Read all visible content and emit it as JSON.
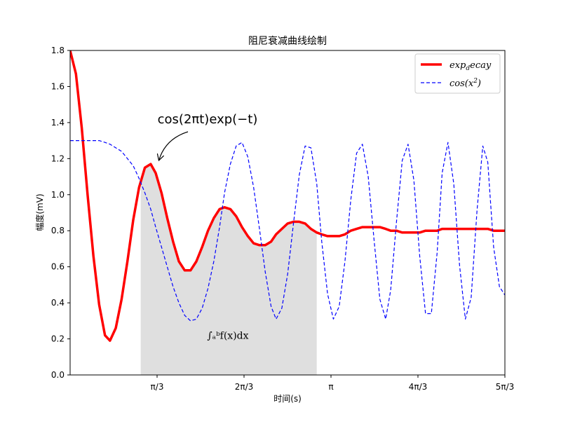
{
  "chart_data": {
    "type": "line",
    "title": "阻尼衰减曲线绘制",
    "xlabel": "时间(s)",
    "ylabel": "幅度(mV)",
    "xlim": [
      0,
      5.236
    ],
    "ylim": [
      0,
      1.8
    ],
    "grid": false,
    "legend_position": "top-right",
    "x_ticks": [
      {
        "value": 1.0472,
        "label": "π/3"
      },
      {
        "value": 2.0944,
        "label": "2π/3"
      },
      {
        "value": 3.1416,
        "label": "π"
      },
      {
        "value": 4.1888,
        "label": "4π/3"
      },
      {
        "value": 5.236,
        "label": "5π/3"
      }
    ],
    "y_ticks": [
      {
        "value": 0.0,
        "label": "0.0"
      },
      {
        "value": 0.2,
        "label": "0.2"
      },
      {
        "value": 0.4,
        "label": "0.4"
      },
      {
        "value": 0.6,
        "label": "0.6"
      },
      {
        "value": 0.8,
        "label": "0.8"
      },
      {
        "value": 1.0,
        "label": "1.0"
      },
      {
        "value": 1.2,
        "label": "1.2"
      },
      {
        "value": 1.4,
        "label": "1.4"
      },
      {
        "value": 1.6,
        "label": "1.6"
      },
      {
        "value": 1.8,
        "label": "1.8"
      }
    ],
    "series": [
      {
        "name": "exp_decay",
        "legend_label": {
          "base": "exp",
          "sub": "d",
          "rest": "ecay"
        },
        "color": "#ff0000",
        "style": "solid",
        "x": [
          0.0,
          0.07,
          0.14,
          0.21,
          0.28,
          0.35,
          0.42,
          0.48,
          0.55,
          0.62,
          0.69,
          0.76,
          0.83,
          0.9,
          0.97,
          1.03,
          1.1,
          1.17,
          1.24,
          1.31,
          1.38,
          1.45,
          1.52,
          1.59,
          1.66,
          1.73,
          1.8,
          1.86,
          1.93,
          2.0,
          2.07,
          2.14,
          2.21,
          2.28,
          2.35,
          2.42,
          2.48,
          2.55,
          2.62,
          2.69,
          2.76,
          2.83,
          2.9,
          2.97,
          3.03,
          3.1,
          3.17,
          3.24,
          3.31,
          3.38,
          3.45,
          3.52,
          3.59,
          3.66,
          3.73,
          3.8,
          3.86,
          3.93,
          4.0,
          4.07,
          4.14,
          4.21,
          4.28,
          4.35,
          4.42,
          4.48,
          4.55,
          4.62,
          4.69,
          4.76,
          4.83,
          4.9,
          4.97,
          5.03,
          5.1,
          5.17,
          5.24
        ],
        "y": [
          1.8,
          1.67,
          1.37,
          1.0,
          0.66,
          0.39,
          0.22,
          0.19,
          0.26,
          0.42,
          0.63,
          0.86,
          1.04,
          1.15,
          1.17,
          1.12,
          1.01,
          0.87,
          0.74,
          0.63,
          0.58,
          0.58,
          0.63,
          0.71,
          0.8,
          0.87,
          0.92,
          0.93,
          0.92,
          0.88,
          0.82,
          0.77,
          0.73,
          0.72,
          0.72,
          0.74,
          0.78,
          0.81,
          0.84,
          0.85,
          0.85,
          0.84,
          0.81,
          0.79,
          0.78,
          0.77,
          0.77,
          0.77,
          0.78,
          0.8,
          0.81,
          0.82,
          0.82,
          0.82,
          0.82,
          0.81,
          0.8,
          0.8,
          0.79,
          0.79,
          0.79,
          0.79,
          0.8,
          0.8,
          0.8,
          0.81,
          0.81,
          0.81,
          0.81,
          0.81,
          0.81,
          0.81,
          0.81,
          0.81,
          0.8,
          0.8,
          0.8
        ]
      },
      {
        "name": "cos(x^2)",
        "legend_label": {
          "base": "cos(x",
          "sup": "2",
          "rest": ")"
        },
        "color": "#0000ff",
        "style": "dashed",
        "x": [
          0.0,
          0.07,
          0.14,
          0.21,
          0.28,
          0.35,
          0.42,
          0.48,
          0.55,
          0.62,
          0.69,
          0.76,
          0.83,
          0.9,
          0.97,
          1.03,
          1.1,
          1.17,
          1.24,
          1.31,
          1.38,
          1.45,
          1.52,
          1.59,
          1.66,
          1.73,
          1.8,
          1.86,
          1.93,
          2.0,
          2.07,
          2.14,
          2.21,
          2.28,
          2.35,
          2.42,
          2.48,
          2.55,
          2.62,
          2.69,
          2.76,
          2.83,
          2.9,
          2.97,
          3.03,
          3.1,
          3.17,
          3.24,
          3.31,
          3.38,
          3.45,
          3.52,
          3.59,
          3.66,
          3.73,
          3.8,
          3.86,
          3.93,
          4.0,
          4.07,
          4.14,
          4.21,
          4.28,
          4.35,
          4.42,
          4.48,
          4.55,
          4.62,
          4.69,
          4.76,
          4.83,
          4.9,
          4.97,
          5.03,
          5.1,
          5.17,
          5.24
        ],
        "y": [
          1.3,
          1.3,
          1.3,
          1.3,
          1.3,
          1.3,
          1.29,
          1.28,
          1.26,
          1.24,
          1.2,
          1.16,
          1.09,
          1.01,
          0.92,
          0.82,
          0.71,
          0.6,
          0.49,
          0.4,
          0.33,
          0.3,
          0.31,
          0.37,
          0.48,
          0.63,
          0.82,
          1.01,
          1.17,
          1.27,
          1.29,
          1.21,
          1.04,
          0.81,
          0.57,
          0.38,
          0.31,
          0.37,
          0.56,
          0.84,
          1.11,
          1.27,
          1.26,
          1.06,
          0.74,
          0.45,
          0.31,
          0.38,
          0.63,
          0.97,
          1.23,
          1.28,
          1.1,
          0.75,
          0.42,
          0.31,
          0.47,
          0.85,
          1.19,
          1.28,
          1.08,
          0.66,
          0.34,
          0.34,
          0.68,
          1.12,
          1.29,
          1.06,
          0.61,
          0.31,
          0.43,
          0.91,
          1.27,
          1.18,
          0.71,
          0.49,
          0.44
        ]
      }
    ],
    "shaded_region": {
      "x_from": 0.85,
      "x_to": 2.97,
      "follows_series": "exp_decay",
      "color": "#dfdfdf"
    },
    "annotations": [
      {
        "text": "cos(2πt)exp(−t)",
        "target_x": 1.02,
        "target_y": 1.17,
        "arrow": true
      },
      {
        "text": "∫ₐᵇf(x)dx",
        "x": 1.65,
        "y": 0.2
      }
    ]
  }
}
